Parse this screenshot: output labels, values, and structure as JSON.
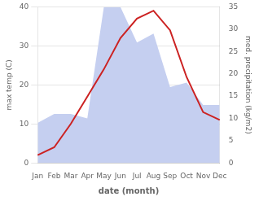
{
  "chart_data": {
    "type": "line",
    "categories": [
      "Jan",
      "Feb",
      "Mar",
      "Apr",
      "May",
      "Jun",
      "Jul",
      "Aug",
      "Sep",
      "Oct",
      "Nov",
      "Dec"
    ],
    "xlabel": "date (month)",
    "ylabel": "max temp (C)",
    "y2label": "med. precipitation (kg/m2)",
    "series": [
      {
        "type": "line",
        "color": "#cc2222",
        "values": [
          2,
          4,
          10,
          17,
          24,
          32,
          37,
          39,
          34,
          22,
          13,
          11
        ]
      },
      {
        "type": "area",
        "color": "#c5cff0",
        "axis": "y2",
        "values": [
          9,
          11,
          11,
          10,
          35,
          35,
          27,
          29,
          17,
          18,
          13,
          13
        ]
      }
    ],
    "ylim": [
      0,
      40
    ],
    "yticks": [
      0,
      10,
      20,
      30,
      40
    ],
    "y2lim": [
      0,
      35
    ],
    "y2ticks": [
      0,
      5,
      10,
      15,
      20,
      25,
      30,
      35
    ],
    "grid": true
  }
}
